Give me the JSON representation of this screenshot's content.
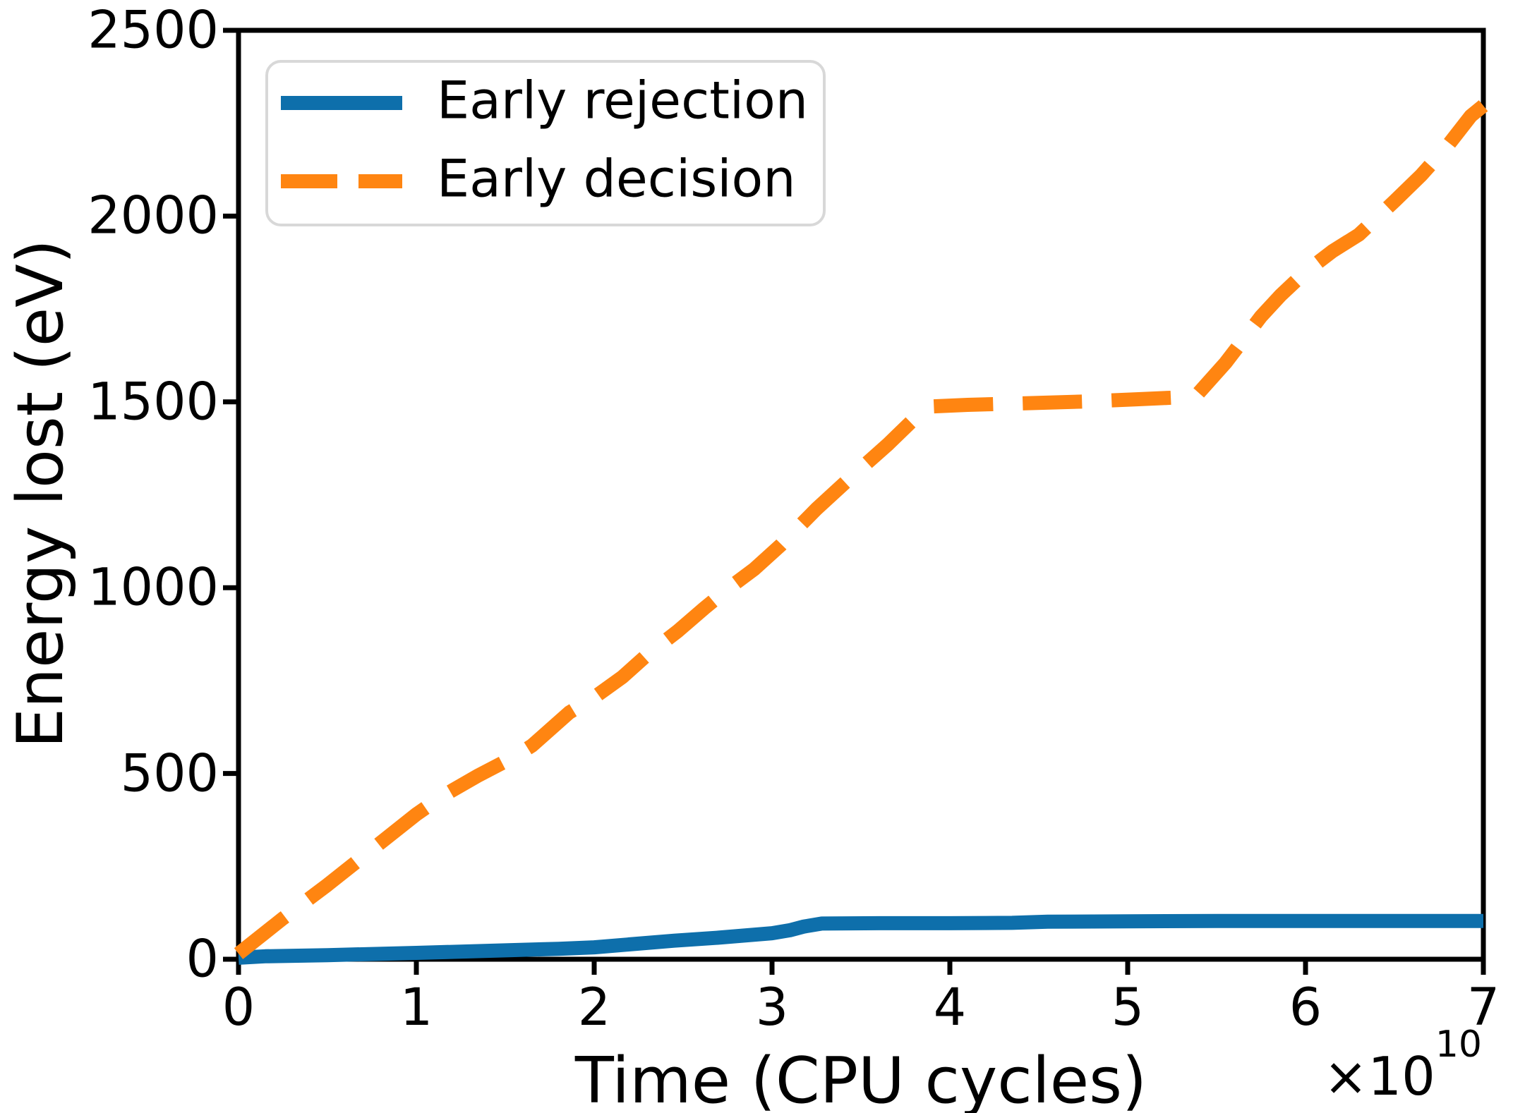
{
  "chart_data": {
    "type": "line",
    "title": "",
    "xlabel": "Time (CPU cycles)",
    "ylabel": "Energy lost (eV)",
    "x_offset_base": "×10",
    "x_offset_exponent": "10",
    "xlim": [
      0,
      7
    ],
    "ylim": [
      0,
      2500
    ],
    "x_ticks": [
      "0",
      "1",
      "2",
      "3",
      "4",
      "5",
      "6",
      "7"
    ],
    "y_ticks": [
      "0",
      "500",
      "1000",
      "1500",
      "2000",
      "2500"
    ],
    "grid": false,
    "legend_position": "upper left",
    "axis_color": "#000000",
    "series": [
      {
        "name": "Early rejection",
        "color": "#0e6fab",
        "style": "solid",
        "x": [
          0,
          0.15,
          0.5,
          1.0,
          1.5,
          1.8,
          2.0,
          2.2,
          2.45,
          2.7,
          3.0,
          3.1,
          3.18,
          3.28,
          3.6,
          4.0,
          4.35,
          4.55,
          5.0,
          5.5,
          6.0,
          6.5,
          7.0
        ],
        "y": [
          4,
          8,
          11,
          17,
          24,
          28,
          32,
          40,
          50,
          58,
          70,
          78,
          88,
          96,
          97,
          97,
          98,
          101,
          102,
          103,
          103,
          103,
          103
        ]
      },
      {
        "name": "Early decision",
        "color": "#ff8511",
        "style": "dashed",
        "x": [
          0,
          0.25,
          0.5,
          0.75,
          1.0,
          1.15,
          1.35,
          1.55,
          1.65,
          1.86,
          2.0,
          2.16,
          2.3,
          2.47,
          2.62,
          2.76,
          2.9,
          3.05,
          3.25,
          3.45,
          3.65,
          3.87,
          4.1,
          4.4,
          4.75,
          5.05,
          5.38,
          5.55,
          5.75,
          5.86,
          6.0,
          6.15,
          6.3,
          6.5,
          6.65,
          6.8,
          6.93,
          7.0
        ],
        "y": [
          15,
          110,
          200,
          295,
          390,
          440,
          495,
          545,
          575,
          664,
          705,
          760,
          820,
          883,
          945,
          1000,
          1050,
          1115,
          1212,
          1300,
          1385,
          1487,
          1492,
          1496,
          1501,
          1507,
          1514,
          1605,
          1730,
          1787,
          1850,
          1905,
          1950,
          2040,
          2110,
          2190,
          2270,
          2297
        ]
      }
    ]
  }
}
